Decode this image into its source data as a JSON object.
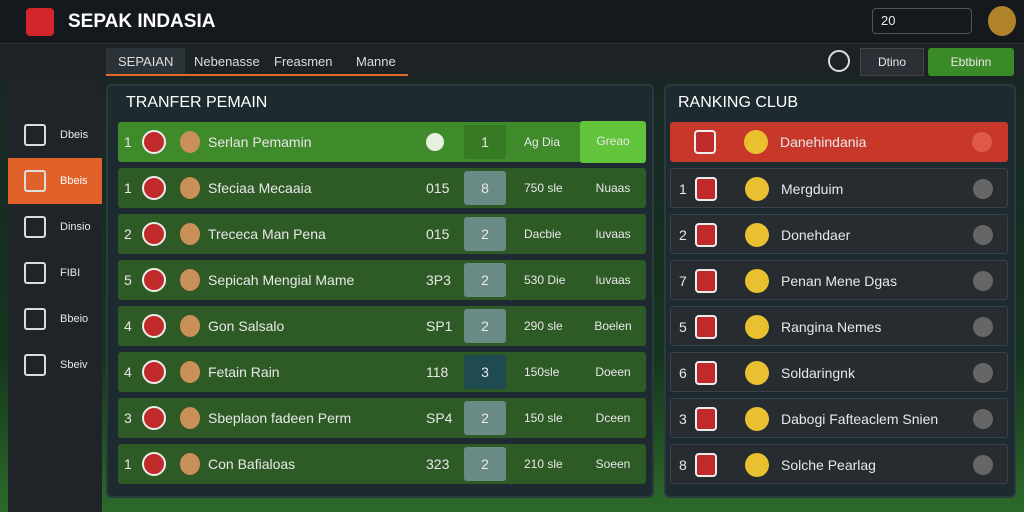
{
  "header": {
    "title": "SEPAK INDASIA",
    "counter": "20"
  },
  "tabs": [
    "SEPAIAN",
    "Nebenasse",
    "Freasmen",
    "Manne"
  ],
  "actions": [
    "Dtino",
    "Ebtbinn"
  ],
  "sidebar": [
    "Dbeis",
    "Bbeis",
    "Dinsio",
    "FIBI",
    "Bbeio",
    "Sbeiv"
  ],
  "transfer": {
    "title": "TRANFER PEMAIN",
    "rows": [
      {
        "rank": "1",
        "name": "Serlan Pemamin",
        "count": "1",
        "price": "Ag Dia",
        "status": "Greao"
      },
      {
        "rank": "1",
        "name": "Sfeciaa Mecaaia",
        "value": "015",
        "count": "8",
        "price": "750 sle",
        "status": "Nuaas"
      },
      {
        "rank": "2",
        "name": "Trececa Man Pena",
        "value": "015",
        "count": "2",
        "price": "Dacbie",
        "status": "Iuvaas"
      },
      {
        "rank": "5",
        "name": "Sepicah Mengial Mame",
        "value": "3P3",
        "count": "2",
        "price": "530 Die",
        "status": "Iuvaas"
      },
      {
        "rank": "4",
        "name": "Gon Salsalo",
        "value": "SP1",
        "count": "2",
        "price": "290 sle",
        "status": "Boelen"
      },
      {
        "rank": "4",
        "name": "Fetain Rain",
        "value": "118",
        "count": "3",
        "price": "150sle",
        "status": "Doeen"
      },
      {
        "rank": "3",
        "name": "Sbeplaon fadeen Perm",
        "value": "SP4",
        "count": "2",
        "price": "150 sle",
        "status": "Dceen"
      },
      {
        "rank": "1",
        "name": "Con Bafialoas",
        "value": "323",
        "count": "2",
        "price": "210 sle",
        "status": "Soeen"
      }
    ]
  },
  "ranking": {
    "title": "RANKING CLUB",
    "rows": [
      {
        "name": "Danehindania"
      },
      {
        "rank": "1",
        "name": "Mergduim"
      },
      {
        "rank": "2",
        "name": "Donehdaer"
      },
      {
        "rank": "7",
        "name": "Penan Mene Dgas"
      },
      {
        "rank": "5",
        "name": "Rangina Nemes"
      },
      {
        "rank": "6",
        "name": "Soldaringnk"
      },
      {
        "rank": "3",
        "name": "Dabogi Fafteaclem Snien"
      },
      {
        "rank": "8",
        "name": "Solche Pearlag"
      }
    ]
  }
}
